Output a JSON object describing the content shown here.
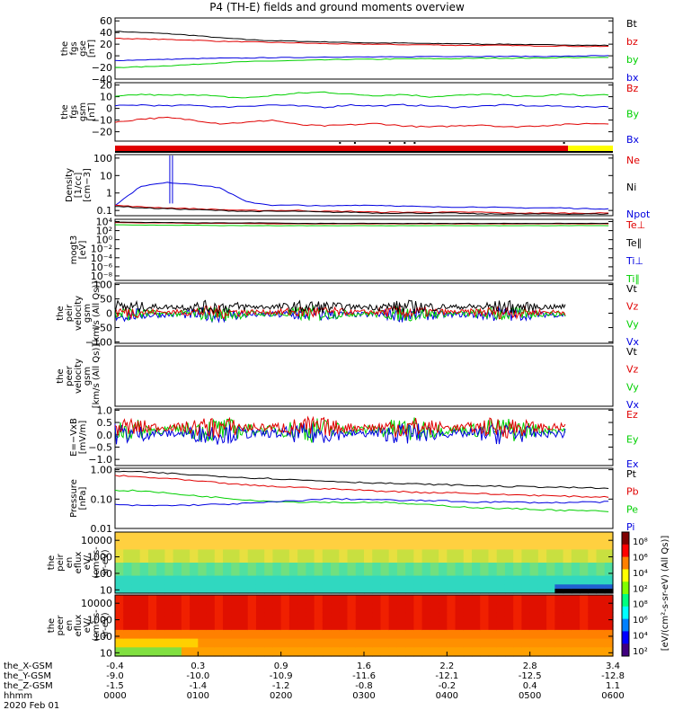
{
  "title": "P4 (TH-E) fields and ground moments overview",
  "colors": {
    "black": "#000000",
    "red": "#e00000",
    "green": "#00d000",
    "blue": "#0000e0",
    "yellow": "#ffff00"
  },
  "panels": [
    {
      "id": "fgs-gse",
      "ylabel": [
        "the",
        "fgs",
        "gse",
        "[nT]"
      ],
      "yticks": [
        "60",
        "40",
        "20",
        "0",
        "−20",
        "−40"
      ],
      "yvals": [
        60,
        40,
        20,
        0,
        -20,
        -40
      ],
      "ylim": [
        -40,
        65
      ],
      "scale": "linear",
      "legend": [
        {
          "t": "Bt",
          "c": "black"
        },
        {
          "t": "bz",
          "c": "red"
        },
        {
          "t": "by",
          "c": "green"
        },
        {
          "t": "bx",
          "c": "blue"
        }
      ],
      "series": [
        {
          "c": "black",
          "v": [
            42,
            40,
            38,
            35,
            31,
            28,
            26,
            25,
            24,
            23,
            22,
            22,
            21,
            21,
            20,
            20,
            19,
            19,
            18,
            18
          ]
        },
        {
          "c": "red",
          "v": [
            30,
            29,
            28,
            27,
            25,
            24,
            23,
            22,
            21,
            20,
            20,
            19,
            19,
            18,
            18,
            18,
            17,
            17,
            16,
            16
          ]
        },
        {
          "c": "green",
          "v": [
            -20,
            -19,
            -17,
            -15,
            -12,
            -10,
            -9,
            -8,
            -7,
            -6,
            -6,
            -5,
            -5,
            -5,
            -4,
            -4,
            -4,
            -3,
            -3,
            -3
          ]
        },
        {
          "c": "blue",
          "v": [
            -8,
            -7,
            -6,
            -5,
            -4,
            -4,
            -3,
            -3,
            -2,
            -2,
            -2,
            -2,
            -1,
            -1,
            -1,
            -1,
            -1,
            -1,
            0,
            0
          ]
        }
      ]
    },
    {
      "id": "fgs-gsm",
      "ylabel": [
        "the",
        "fgs",
        "gsm",
        "[nT]"
      ],
      "yticks": [
        "20",
        "10",
        "0",
        "−10",
        "−20"
      ],
      "yvals": [
        20,
        10,
        0,
        -10,
        -20
      ],
      "ylim": [
        -28,
        22
      ],
      "scale": "linear",
      "legend": [
        {
          "t": "Bz",
          "c": "red"
        },
        {
          "t": "By",
          "c": "green"
        },
        {
          "t": "Bx",
          "c": "blue"
        }
      ],
      "series": [
        {
          "c": "green",
          "v": [
            10,
            12,
            11,
            12,
            10,
            9,
            11,
            13,
            14,
            12,
            11,
            12,
            10,
            11,
            12,
            11,
            10,
            12,
            11,
            12
          ]
        },
        {
          "c": "blue",
          "v": [
            2,
            3,
            2,
            3,
            1,
            2,
            3,
            2,
            1,
            3,
            2,
            3,
            2,
            1,
            2,
            3,
            2,
            2,
            1,
            2
          ]
        },
        {
          "c": "red",
          "v": [
            -12,
            -9,
            -8,
            -10,
            -13,
            -12,
            -10,
            -14,
            -15,
            -14,
            -13,
            -15,
            -16,
            -15,
            -14,
            -16,
            -15,
            -14,
            -13,
            -13
          ]
        }
      ]
    },
    {
      "id": "density",
      "ylabel": [
        "Density",
        "[1/cc]",
        "[cm−3]"
      ],
      "yticks": [
        "100",
        "10",
        "1",
        "0.1"
      ],
      "yvals": [
        2,
        1,
        0,
        -1
      ],
      "ylim": [
        -1.3,
        2.2
      ],
      "scale": "log",
      "legend": [
        {
          "t": "Ne",
          "c": "red"
        },
        {
          "t": "Ni",
          "c": "black"
        },
        {
          "t": "Npot",
          "c": "blue"
        }
      ],
      "series": [
        {
          "c": "blue",
          "v": [
            -0.7,
            0.4,
            0.6,
            0.5,
            0.3,
            -0.5,
            -0.7,
            -0.7,
            -0.75,
            -0.7,
            -0.7,
            -0.75,
            -0.8,
            -0.8,
            -0.8,
            -0.85,
            -0.85,
            -0.85,
            -0.9,
            -0.9
          ]
        },
        {
          "c": "red",
          "v": [
            -0.7,
            -0.8,
            -0.85,
            -0.9,
            -0.95,
            -1,
            -1,
            -1,
            -1.05,
            -1.05,
            -1.1,
            -1.1,
            -1.1,
            -1.1,
            -1.1,
            -1.15,
            -1.15,
            -1.15,
            -1.15,
            -1.15
          ]
        },
        {
          "c": "black",
          "v": [
            -0.75,
            -0.85,
            -0.9,
            -0.95,
            -1,
            -1.05,
            -1.05,
            -1.05,
            -1.1,
            -1.1,
            -1.15,
            -1.15,
            -1.15,
            -1.15,
            -1.2,
            -1.2,
            -1.2,
            -1.2,
            -1.2,
            -1.2
          ]
        }
      ]
    },
    {
      "id": "moments-t",
      "ylabel": [
        "mogt3",
        "[eV]"
      ],
      "yticks": [
        "10⁴",
        "10²",
        "10⁰",
        "10⁻²",
        "10⁻⁴",
        "10⁻⁶",
        "10⁻⁸"
      ],
      "yvals": [
        4,
        2,
        0,
        -2,
        -4,
        -6,
        -8
      ],
      "ylim": [
        -9,
        4.5
      ],
      "scale": "log",
      "legend": [
        {
          "t": "Te⊥",
          "c": "red"
        },
        {
          "t": "Te∥",
          "c": "black"
        },
        {
          "t": "Ti⊥",
          "c": "blue"
        },
        {
          "t": "Ti∥",
          "c": "green"
        }
      ],
      "series": [
        {
          "c": "red",
          "v": [
            3.8,
            3.7,
            3.7,
            3.6,
            3.6,
            3.6,
            3.5,
            3.5,
            3.5,
            3.5,
            3.5,
            3.5,
            3.5,
            3.5,
            3.5,
            3.5,
            3.5,
            3.5,
            3.5,
            3.5
          ]
        },
        {
          "c": "black",
          "v": [
            3.9,
            3.8,
            3.8,
            3.7,
            3.7,
            3.7,
            3.7,
            3.6,
            3.6,
            3.6,
            3.6,
            3.6,
            3.6,
            3.6,
            3.6,
            3.6,
            3.6,
            3.6,
            3.6,
            3.6
          ]
        },
        {
          "c": "green",
          "v": [
            3.3,
            3.2,
            3.2,
            3.2,
            3.1,
            3.1,
            3.1,
            3.1,
            3.1,
            3.1,
            3.1,
            3.1,
            3.1,
            3.1,
            3.1,
            3.1,
            3.1,
            3.1,
            3.1,
            3.1
          ]
        }
      ]
    },
    {
      "id": "peir-velocity",
      "ylabel": [
        "the",
        "peir",
        "velocity",
        "gsm",
        "[km/s (All Qs)]"
      ],
      "yticks": [
        "100",
        "50",
        "0",
        "−50",
        "−100"
      ],
      "yvals": [
        100,
        50,
        0,
        -50,
        -100
      ],
      "ylim": [
        -105,
        105
      ],
      "scale": "linear",
      "noisy": true,
      "legend": [
        {
          "t": "Vt",
          "c": "black"
        },
        {
          "t": "Vz",
          "c": "red"
        },
        {
          "t": "Vy",
          "c": "green"
        },
        {
          "t": "Vx",
          "c": "blue"
        }
      ],
      "series": [
        {
          "c": "blue",
          "v": [
            -5
          ],
          "amp": 18
        },
        {
          "c": "green",
          "v": [
            -2
          ],
          "amp": 18
        },
        {
          "c": "red",
          "v": [
            4
          ],
          "amp": 16
        },
        {
          "c": "black",
          "v": [
            22
          ],
          "amp": 16
        }
      ]
    },
    {
      "id": "peer-velocity",
      "ylabel": [
        "the",
        "peer",
        "velocity",
        "gsm",
        "[km/s (All Qs)]"
      ],
      "yticks": [],
      "yvals": [],
      "ylim": [
        -1,
        1
      ],
      "scale": "linear",
      "legend": [
        {
          "t": "Vt",
          "c": "black"
        },
        {
          "t": "Vz",
          "c": "red"
        },
        {
          "t": "Vy",
          "c": "green"
        },
        {
          "t": "Vx",
          "c": "blue"
        }
      ],
      "series": []
    },
    {
      "id": "efield",
      "ylabel": [
        "E=−VxB",
        "[mV/m]"
      ],
      "yticks": [
        "1.0",
        "0.5",
        "0.0",
        "−0.5",
        "−1.0"
      ],
      "yvals": [
        1,
        0.5,
        0,
        -0.5,
        -1
      ],
      "ylim": [
        -1.25,
        1.05
      ],
      "scale": "linear",
      "noisy": true,
      "legend": [
        {
          "t": "Ez",
          "c": "red"
        },
        {
          "t": "Ey",
          "c": "green"
        },
        {
          "t": "Ex",
          "c": "blue"
        }
      ],
      "series": [
        {
          "c": "green",
          "v": [
            0.2
          ],
          "amp": 0.35
        },
        {
          "c": "blue",
          "v": [
            0.05
          ],
          "amp": 0.3
        },
        {
          "c": "red",
          "v": [
            0.3
          ],
          "amp": 0.3
        }
      ]
    },
    {
      "id": "pressure",
      "ylabel": [
        "Pressure",
        "[nPa]"
      ],
      "yticks": [
        "1.00",
        "0.10",
        "0.01"
      ],
      "yvals": [
        0,
        -1,
        -2
      ],
      "ylim": [
        -2,
        0.05
      ],
      "scale": "log",
      "legend": [
        {
          "t": "Pt",
          "c": "black"
        },
        {
          "t": "Pb",
          "c": "red"
        },
        {
          "t": "Pe",
          "c": "green"
        },
        {
          "t": "Pi",
          "c": "blue"
        }
      ],
      "series": [
        {
          "c": "black",
          "v": [
            -0.05,
            -0.08,
            -0.12,
            -0.18,
            -0.22,
            -0.27,
            -0.3,
            -0.35,
            -0.38,
            -0.42,
            -0.45,
            -0.48,
            -0.5,
            -0.52,
            -0.55,
            -0.57,
            -0.58,
            -0.6,
            -0.62,
            -0.64
          ]
        },
        {
          "c": "red",
          "v": [
            -0.2,
            -0.25,
            -0.3,
            -0.38,
            -0.45,
            -0.52,
            -0.57,
            -0.6,
            -0.65,
            -0.68,
            -0.72,
            -0.75,
            -0.78,
            -0.78,
            -0.82,
            -0.85,
            -0.87,
            -0.9,
            -0.92,
            -0.93
          ]
        },
        {
          "c": "green",
          "v": [
            -0.7,
            -0.72,
            -0.8,
            -0.88,
            -0.95,
            -1.02,
            -1.08,
            -1.1,
            -1.1,
            -1.12,
            -1.1,
            -1.15,
            -1.2,
            -1.25,
            -1.3,
            -1.32,
            -1.35,
            -1.38,
            -1.4,
            -1.42
          ]
        },
        {
          "c": "blue",
          "v": [
            -1.2,
            -1.22,
            -1.22,
            -1.2,
            -1.18,
            -1.15,
            -1.1,
            -1.05,
            -1.0,
            -1.0,
            -1.02,
            -1.05,
            -1.05,
            -1.08,
            -1.1,
            -1.1,
            -1.12,
            -1.12,
            -1.1,
            -1.1
          ]
        }
      ]
    },
    {
      "id": "peir-eflux",
      "ylabel": [
        "the",
        "peir",
        "en",
        "eflux",
        "eV/",
        "(cm²-s-",
        "sr-eV)"
      ],
      "yticks": [
        "10000",
        "1000",
        "100",
        "10"
      ],
      "yvals": [
        4,
        3,
        2,
        1
      ],
      "ylim": [
        0.8,
        4.5
      ],
      "scale": "log",
      "spectrogram": "ion"
    },
    {
      "id": "peer-eflux",
      "ylabel": [
        "the",
        "peer",
        "en",
        "eflux",
        "eV/",
        "(cm²-s-",
        "sr-eV)"
      ],
      "yticks": [
        "10000",
        "1000",
        "100",
        "10"
      ],
      "yvals": [
        4,
        3,
        2,
        1
      ],
      "ylim": [
        0.8,
        4.5
      ],
      "scale": "log",
      "spectrogram": "electron"
    }
  ],
  "colorbar": {
    "label": "[eV/(cm²-s-sr-eV) (All Qs)]",
    "ticks": [
      "10⁸",
      "10⁶",
      "10⁴",
      "10²",
      "10⁸",
      "10⁶",
      "10⁴",
      "10²"
    ]
  },
  "xaxis": {
    "rows": [
      {
        "label": "the_X-GSM",
        "vals": [
          "-0.4",
          "0.3",
          "0.9",
          "1.6",
          "2.2",
          "2.8",
          "3.4"
        ]
      },
      {
        "label": "the_Y-GSM",
        "vals": [
          "-9.0",
          "-10.0",
          "-10.9",
          "-11.6",
          "-12.1",
          "-12.5",
          "-12.8"
        ]
      },
      {
        "label": "the_Z-GSM",
        "vals": [
          "-1.5",
          "-1.4",
          "-1.2",
          "-0.8",
          "-0.2",
          "0.4",
          "1.1"
        ]
      },
      {
        "label": "hhmm",
        "vals": [
          "0000",
          "0100",
          "0200",
          "0300",
          "0400",
          "0500",
          "0600"
        ]
      }
    ],
    "date": "2020 Feb 01"
  }
}
